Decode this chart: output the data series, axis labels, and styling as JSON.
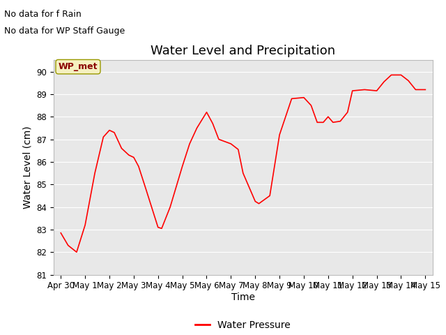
{
  "title": "Water Level and Precipitation",
  "xlabel": "Time",
  "ylabel": "Water Level (cm)",
  "ylim": [
    81.0,
    90.5
  ],
  "yticks": [
    81.0,
    82.0,
    83.0,
    84.0,
    85.0,
    86.0,
    87.0,
    88.0,
    89.0,
    90.0
  ],
  "bg_color": "#e8e8e8",
  "line_color": "#ff0000",
  "legend_label": "Water Pressure",
  "no_data_text1": "No data for f Rain",
  "no_data_text2": "No data for WP Staff Gauge",
  "wp_met_label": "WP_met",
  "x_days": [
    0,
    0.3,
    0.65,
    1.0,
    1.4,
    1.75,
    2.0,
    2.2,
    2.5,
    2.8,
    3.0,
    3.2,
    3.5,
    4.0,
    4.15,
    4.5,
    5.0,
    5.3,
    5.6,
    6.0,
    6.25,
    6.5,
    7.0,
    7.3,
    7.5,
    8.0,
    8.15,
    8.6,
    9.0,
    9.5,
    10.0,
    10.3,
    10.55,
    10.8,
    11.0,
    11.2,
    11.5,
    11.8,
    12.0,
    12.5,
    13.0,
    13.3,
    13.6,
    14.0,
    14.3,
    14.6,
    15.0
  ],
  "y_values": [
    82.85,
    82.3,
    82.0,
    83.2,
    85.5,
    87.1,
    87.4,
    87.3,
    86.6,
    86.3,
    86.2,
    85.8,
    84.8,
    83.1,
    83.05,
    84.0,
    85.8,
    86.8,
    87.5,
    88.2,
    87.7,
    87.0,
    86.8,
    86.55,
    85.5,
    84.25,
    84.15,
    84.5,
    87.2,
    88.8,
    88.85,
    88.5,
    87.75,
    87.75,
    88.0,
    87.75,
    87.8,
    88.2,
    89.15,
    89.2,
    89.15,
    89.55,
    89.85,
    89.85,
    89.6,
    89.2,
    89.2
  ],
  "xtick_labels": [
    "Apr 30",
    "May 1",
    "May 2",
    "May 3",
    "May 4",
    "May 5",
    "May 6",
    "May 7",
    "May 8",
    "May 9",
    "May 10",
    "May 11",
    "May 12",
    "May 13",
    "May 14",
    "May 15"
  ],
  "xtick_positions": [
    0,
    1,
    2,
    3,
    4,
    5,
    6,
    7,
    8,
    9,
    10,
    11,
    12,
    13,
    14,
    15
  ],
  "title_fontsize": 13,
  "axis_label_fontsize": 10,
  "tick_fontsize": 8.5,
  "figsize": [
    6.4,
    4.8
  ],
  "dpi": 100
}
